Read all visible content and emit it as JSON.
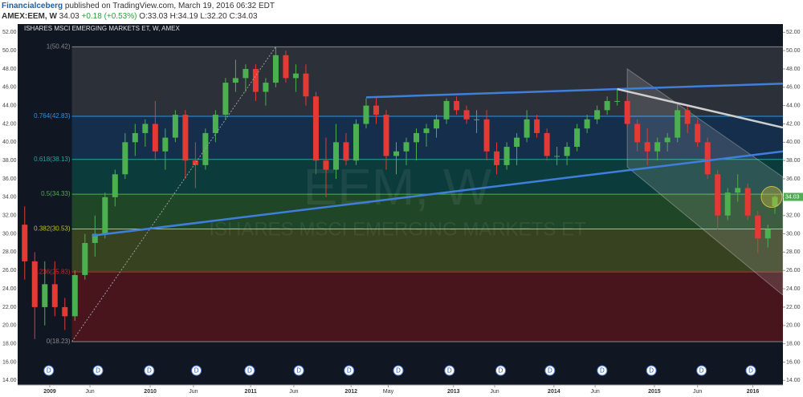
{
  "header": {
    "author": "Financialceberg",
    "published": "published on TradingView.com, March 19, 2016 06:32 EDT",
    "symbol": "AMEX:EEM, W",
    "change": "+0.18 (+0.53%)",
    "ohlc": "O:33.03 H:34.19 L:32.20 C:34.03"
  },
  "chart_data": {
    "type": "candlestick",
    "title": "ISHARES MSCI EMERGING MARKETS ET, W, AMEX",
    "watermark": "EEM, W",
    "watermark_subtitle": "ISHARES MSCI EMERGING MARKETS ET",
    "last_price": 34.03,
    "xlim": [
      2008.68,
      2016.3
    ],
    "xticks": [
      {
        "value": 2009.0,
        "label": "2009"
      },
      {
        "value": 2009.4,
        "label": "Jun"
      },
      {
        "value": 2010.0,
        "label": "2010"
      },
      {
        "value": 2010.43,
        "label": "Jun"
      },
      {
        "value": 2011.0,
        "label": "2011"
      },
      {
        "value": 2011.43,
        "label": "Jun"
      },
      {
        "value": 2012.0,
        "label": "2012"
      },
      {
        "value": 2012.37,
        "label": "May"
      },
      {
        "value": 2013.02,
        "label": "2013"
      },
      {
        "value": 2013.43,
        "label": "Jun"
      },
      {
        "value": 2014.02,
        "label": "2014"
      },
      {
        "value": 2014.43,
        "label": "Jun"
      },
      {
        "value": 2015.02,
        "label": "2015"
      },
      {
        "value": 2015.45,
        "label": "Jun"
      },
      {
        "value": 2016.0,
        "label": "2016"
      }
    ],
    "ylim": [
      13.5,
      52.9
    ],
    "yticks": [
      {
        "value": 14,
        "label": "14.00"
      },
      {
        "value": 16,
        "label": "16.00"
      },
      {
        "value": 18,
        "label": "18.00"
      },
      {
        "value": 20,
        "label": "20.00"
      },
      {
        "value": 22,
        "label": "22.00"
      },
      {
        "value": 24,
        "label": "24.00"
      },
      {
        "value": 26,
        "label": "26.00"
      },
      {
        "value": 28,
        "label": "28.00"
      },
      {
        "value": 30,
        "label": "30.00"
      },
      {
        "value": 32,
        "label": "32.00"
      },
      {
        "value": 34,
        "label": "34.00"
      },
      {
        "value": 36,
        "label": "36.00"
      },
      {
        "value": 38,
        "label": "38.00"
      },
      {
        "value": 40,
        "label": "40.00"
      },
      {
        "value": 42,
        "label": "42.00"
      },
      {
        "value": 44,
        "label": "44.00"
      },
      {
        "value": 46,
        "label": "46.00"
      },
      {
        "value": 48,
        "label": "48.00"
      },
      {
        "value": 50,
        "label": "50.00"
      },
      {
        "value": 52,
        "label": "52.00"
      }
    ],
    "up_color": "#4caf50",
    "down_color": "#e53935",
    "x": [
      2008.75,
      2008.85,
      2008.95,
      2009.05,
      2009.15,
      2009.25,
      2009.35,
      2009.45,
      2009.55,
      2009.65,
      2009.75,
      2009.85,
      2009.95,
      2010.05,
      2010.15,
      2010.25,
      2010.35,
      2010.45,
      2010.55,
      2010.65,
      2010.75,
      2010.85,
      2010.95,
      2011.05,
      2011.15,
      2011.25,
      2011.35,
      2011.45,
      2011.55,
      2011.65,
      2011.75,
      2011.85,
      2011.95,
      2012.05,
      2012.15,
      2012.25,
      2012.35,
      2012.45,
      2012.55,
      2012.65,
      2012.75,
      2012.85,
      2012.95,
      2013.05,
      2013.15,
      2013.25,
      2013.35,
      2013.45,
      2013.55,
      2013.65,
      2013.75,
      2013.85,
      2013.95,
      2014.05,
      2014.15,
      2014.25,
      2014.35,
      2014.45,
      2014.55,
      2014.65,
      2014.75,
      2014.85,
      2014.95,
      2015.05,
      2015.15,
      2015.25,
      2015.35,
      2015.45,
      2015.55,
      2015.65,
      2015.75,
      2015.85,
      2015.95,
      2016.05,
      2016.15,
      2016.22
    ],
    "open": [
      31,
      27,
      22,
      24.5,
      22,
      21,
      25.5,
      29,
      30,
      34,
      36.5,
      40,
      41,
      42,
      39,
      40.5,
      43,
      38,
      37.5,
      41,
      43,
      46.5,
      47,
      48,
      45.5,
      46.5,
      49.5,
      47,
      47.5,
      45,
      38,
      37,
      40,
      38,
      42,
      44,
      43,
      38.5,
      39,
      40,
      41,
      41.5,
      42.5,
      44.5,
      43.5,
      42.5,
      42.5,
      39,
      37.5,
      39.5,
      40.5,
      42.5,
      41,
      38.5,
      38.5,
      39.5,
      41.5,
      42.5,
      43.5,
      44.5,
      44.5,
      42,
      40,
      39,
      40,
      40.5,
      43.5,
      42,
      40,
      36.5,
      32,
      34.5,
      35,
      32,
      29.5,
      33.03
    ],
    "high": [
      33,
      28,
      27,
      27,
      23,
      26,
      30,
      32,
      34.5,
      37,
      41,
      42,
      42.5,
      44.5,
      41.5,
      43.5,
      43.5,
      40,
      41.5,
      43.5,
      47,
      49,
      48.5,
      48.5,
      47,
      50.4,
      50,
      48.5,
      48.5,
      45.5,
      40.5,
      42,
      41,
      42.5,
      44.8,
      45,
      43.5,
      40,
      40.5,
      41.5,
      42,
      43,
      44.8,
      45,
      44,
      43.5,
      43.5,
      40,
      40,
      41,
      43.5,
      43,
      41.5,
      39.5,
      40,
      42,
      43,
      44,
      45,
      45.8,
      45,
      42.5,
      41.5,
      40.5,
      41,
      44.2,
      44,
      42.5,
      40.5,
      37,
      35,
      36.5,
      35.5,
      32.5,
      31,
      34.19
    ],
    "low": [
      25,
      18.5,
      20,
      21,
      19.5,
      20.5,
      25,
      27.5,
      29.5,
      33,
      36,
      38.5,
      39.5,
      38,
      37,
      40,
      36,
      35,
      37,
      40,
      42.5,
      45.5,
      45.5,
      44.5,
      44,
      46,
      46.5,
      45.5,
      44,
      36.5,
      34,
      36,
      37.5,
      37.5,
      41.5,
      42,
      37,
      36.5,
      37.5,
      38,
      39.5,
      40.5,
      42,
      43,
      42,
      41,
      38,
      36.5,
      37,
      37.5,
      40,
      40.5,
      38,
      37.5,
      37.5,
      39,
      41,
      42,
      43,
      44,
      41.5,
      39,
      37.5,
      38,
      39,
      40,
      41,
      39.5,
      36,
      30.5,
      31.5,
      33.5,
      31.5,
      27.9,
      28.5,
      32.2
    ],
    "close": [
      27,
      22,
      24.5,
      22,
      21,
      25.5,
      29,
      30,
      34,
      36.5,
      40,
      41,
      42,
      39,
      40.5,
      43,
      38,
      37.5,
      41,
      43,
      46.5,
      47,
      48,
      45.5,
      46.5,
      49.5,
      47,
      47.5,
      45,
      38,
      37,
      40,
      38,
      42,
      44,
      43,
      38.5,
      39,
      40,
      41,
      41.5,
      42.5,
      44.5,
      43.5,
      42.5,
      42.5,
      39,
      37.5,
      39.5,
      40.5,
      42.5,
      41,
      38.5,
      38.5,
      39.5,
      41.5,
      42.5,
      43.5,
      44.5,
      44.5,
      42,
      40,
      39,
      40,
      40.5,
      43.5,
      42,
      40,
      36.5,
      32,
      34.5,
      35,
      32,
      29.5,
      30.5,
      34.03
    ],
    "fib_start_x": 2009.22,
    "fib_levels": [
      {
        "label": "1(50.42)",
        "value": 50.42,
        "color": "#888888",
        "fill": "rgba(110,110,110,0.30)"
      },
      {
        "label": "0.764(42.83)",
        "value": 42.83,
        "color": "#2196f3",
        "fill": "rgba(33,120,200,0.25)"
      },
      {
        "label": "0.618(38.13)",
        "value": 38.13,
        "color": "#26a69a",
        "fill": "rgba(0,150,120,0.30)"
      },
      {
        "label": "0.5(34.33)",
        "value": 34.33,
        "color": "#4caf50",
        "fill": "rgba(60,160,50,0.35)"
      },
      {
        "label": "0.382(30.53)",
        "value": 30.53,
        "color": "#c0c030",
        "fill": "rgba(130,150,30,0.35)"
      },
      {
        "label": "0.236(25.83)",
        "value": 25.83,
        "color": "#c62828",
        "fill": "rgba(140,20,20,0.45)"
      },
      {
        "label": "0(18.23)",
        "value": 18.23,
        "color": "#888888",
        "fill": "none"
      }
    ],
    "trendlines": [
      {
        "x": [
          2009.22,
          2011.25
        ],
        "y": [
          18.23,
          50.42
        ],
        "color": "#9e9e9e",
        "dash": true
      },
      {
        "x": [
          2009.42,
          2016.3
        ],
        "y": [
          29.8,
          39.0
        ],
        "color": "#3f7fdc",
        "dash": false
      },
      {
        "x": [
          2012.15,
          2016.3
        ],
        "y": [
          44.9,
          46.4
        ],
        "color": "#3f7fdc",
        "dash": false
      },
      {
        "x": [
          2014.65,
          2016.3
        ],
        "y": [
          45.8,
          41.6
        ],
        "color": "#cfcfcf",
        "dash": false
      }
    ],
    "channel": {
      "x": [
        2014.75,
        2016.3,
        2016.3,
        2014.75
      ],
      "y": [
        48.0,
        36.2,
        23.3,
        37.3
      ]
    },
    "dividend_label": "D",
    "dividends": [
      2008.99,
      2009.48,
      2009.99,
      2010.46,
      2010.99,
      2011.48,
      2011.98,
      2012.47,
      2012.98,
      2013.49,
      2013.98,
      2014.5,
      2014.99,
      2015.49,
      2015.98
    ]
  }
}
